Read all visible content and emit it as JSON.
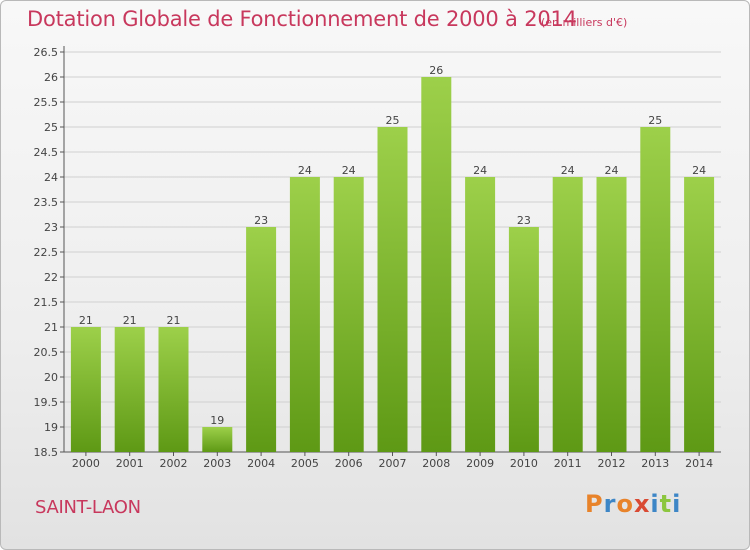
{
  "header": {
    "title": "Dotation Globale de Fonctionnement de 2000 à 2014",
    "unit": "(en milliers d'€)"
  },
  "footer": {
    "commune": "SAINT-LAON",
    "logo": "Proxiti",
    "logo_colors": [
      "#e8832a",
      "#3d86c6",
      "#e8832a",
      "#d94a33",
      "#3d86c6",
      "#8cc63f",
      "#3d86c6"
    ]
  },
  "colors": {
    "bar_top": "#9dd04a",
    "bar_bottom": "#5e9915",
    "title": "#c8385d",
    "grid": "#d0d0d0"
  },
  "chart_data": {
    "type": "bar",
    "categories": [
      "2000",
      "2001",
      "2002",
      "2003",
      "2004",
      "2005",
      "2006",
      "2007",
      "2008",
      "2009",
      "2010",
      "2011",
      "2012",
      "2013",
      "2014"
    ],
    "values": [
      21,
      21,
      21,
      19,
      23,
      24,
      24,
      25,
      26,
      24,
      23,
      24,
      24,
      25,
      24
    ],
    "labels": [
      "21",
      "21",
      "21",
      "19",
      "23",
      "24",
      "24",
      "25",
      "26",
      "24",
      "23",
      "24",
      "24",
      "25",
      "24"
    ],
    "ylim": [
      18.5,
      26.5
    ],
    "yticks": [
      "18.5",
      "19",
      "19.5",
      "20",
      "20.5",
      "21",
      "21.5",
      "22",
      "22.5",
      "23",
      "23.5",
      "24",
      "24.5",
      "25",
      "25.5",
      "26",
      "26.5"
    ],
    "grid": true
  }
}
